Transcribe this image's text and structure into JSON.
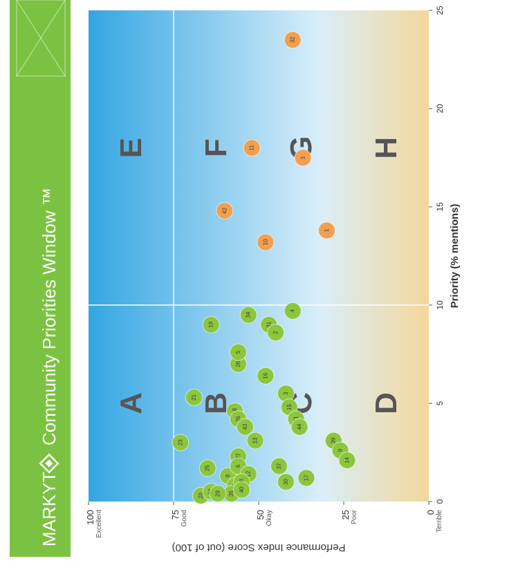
{
  "header": {
    "brand": "MARKYT",
    "title": "Community Priorities Window ™",
    "brand_color": "#7cc242"
  },
  "chart_data": {
    "type": "scatter",
    "xlabel": "Priority (% mentions)",
    "ylabel": "Performance Index Score (out of 100)",
    "xlim": [
      0,
      25
    ],
    "ylim": [
      0,
      100
    ],
    "x_ticks": [
      "0",
      "5",
      "10",
      "15",
      "20",
      "25"
    ],
    "y_ticks": [
      {
        "value": 0,
        "num": "0",
        "desc": "Terrible"
      },
      {
        "value": 25,
        "num": "25",
        "desc": "Poor"
      },
      {
        "value": 50,
        "num": "50",
        "desc": "Okay"
      },
      {
        "value": 75,
        "num": "75",
        "desc": "Good"
      },
      {
        "value": 100,
        "num": "100",
        "desc": "Excellent"
      }
    ],
    "quadrant_lines": {
      "x": 10,
      "y": 75
    },
    "zones": [
      {
        "letter": "A",
        "x": 5,
        "y": 87.5
      },
      {
        "letter": "B",
        "x": 5,
        "y": 62.5
      },
      {
        "letter": "C",
        "x": 5,
        "y": 37.5
      },
      {
        "letter": "D",
        "x": 5,
        "y": 12.5
      },
      {
        "letter": "E",
        "x": 18,
        "y": 87.5
      },
      {
        "letter": "F",
        "x": 18,
        "y": 62.5
      },
      {
        "letter": "G",
        "x": 18,
        "y": 37.5
      },
      {
        "letter": "H",
        "x": 18,
        "y": 12.5
      }
    ],
    "colors": {
      "green_point": "#8cc63f",
      "orange_point": "#f0a050",
      "top_blue": "#34a6e2",
      "mid_blue": "#d9eefa",
      "bottom_tan": "#f3d79b",
      "zone_letter": "#555555"
    },
    "points": [
      {
        "label": "32",
        "x": 23.5,
        "y": 40,
        "group": "orange"
      },
      {
        "label": "11",
        "x": 18,
        "y": 52,
        "group": "orange"
      },
      {
        "label": "1",
        "x": 17.5,
        "y": 37,
        "group": "orange"
      },
      {
        "label": "42",
        "x": 14.8,
        "y": 60,
        "group": "orange"
      },
      {
        "label": "10",
        "x": 13.2,
        "y": 48,
        "group": "orange"
      },
      {
        "label": "1",
        "x": 13.8,
        "y": 30,
        "group": "orange"
      },
      {
        "label": "19",
        "x": 9,
        "y": 64,
        "group": "green"
      },
      {
        "label": "34",
        "x": 9.5,
        "y": 53,
        "group": "green"
      },
      {
        "label": "31",
        "x": 9,
        "y": 47,
        "group": "green"
      },
      {
        "label": "2",
        "x": 8.6,
        "y": 45,
        "group": "green"
      },
      {
        "label": "4",
        "x": 9.7,
        "y": 40,
        "group": "green"
      },
      {
        "label": "26",
        "x": 7,
        "y": 56,
        "group": "green"
      },
      {
        "label": "5",
        "x": 7.6,
        "y": 56,
        "group": "green"
      },
      {
        "label": "16",
        "x": 6.4,
        "y": 48,
        "group": "green"
      },
      {
        "label": "21",
        "x": 5.3,
        "y": 69,
        "group": "green"
      },
      {
        "label": "3",
        "x": 5.5,
        "y": 42,
        "group": "green"
      },
      {
        "label": "15",
        "x": 4.8,
        "y": 41,
        "group": "green"
      },
      {
        "label": "18",
        "x": 4.6,
        "y": 57,
        "group": "green"
      },
      {
        "label": "26",
        "x": 4.2,
        "y": 56,
        "group": "green"
      },
      {
        "label": "43",
        "x": 3.8,
        "y": 54,
        "group": "green"
      },
      {
        "label": "13",
        "x": 3.1,
        "y": 51,
        "group": "green"
      },
      {
        "label": "41",
        "x": 4.2,
        "y": 39,
        "group": "green"
      },
      {
        "label": "44",
        "x": 3.8,
        "y": 38,
        "group": "green"
      },
      {
        "label": "23",
        "x": 3,
        "y": 73,
        "group": "green"
      },
      {
        "label": "39",
        "x": 3.1,
        "y": 28,
        "group": "green"
      },
      {
        "label": "9",
        "x": 2.6,
        "y": 26,
        "group": "green"
      },
      {
        "label": "14",
        "x": 2.1,
        "y": 24,
        "group": "green"
      },
      {
        "label": "25",
        "x": 1.7,
        "y": 65,
        "group": "green"
      },
      {
        "label": "27",
        "x": 2.3,
        "y": 56,
        "group": "green"
      },
      {
        "label": "8",
        "x": 1.3,
        "y": 59,
        "group": "green"
      },
      {
        "label": "6",
        "x": 1.8,
        "y": 56,
        "group": "green"
      },
      {
        "label": "12",
        "x": 1.4,
        "y": 53,
        "group": "green"
      },
      {
        "label": "7",
        "x": 0.8,
        "y": 57,
        "group": "green"
      },
      {
        "label": "28",
        "x": 1,
        "y": 55,
        "group": "green"
      },
      {
        "label": "37",
        "x": 1.8,
        "y": 44,
        "group": "green"
      },
      {
        "label": "30",
        "x": 1,
        "y": 42,
        "group": "green"
      },
      {
        "label": "17",
        "x": 1.2,
        "y": 36,
        "group": "green"
      },
      {
        "label": "20",
        "x": 0.3,
        "y": 67,
        "group": "green"
      },
      {
        "label": "22",
        "x": 0.5,
        "y": 64,
        "group": "green"
      },
      {
        "label": "35",
        "x": 0.4,
        "y": 58,
        "group": "green"
      },
      {
        "label": "40",
        "x": 0.6,
        "y": 55,
        "group": "green"
      },
      {
        "label": "29",
        "x": 0.4,
        "y": 62,
        "group": "green"
      }
    ]
  }
}
